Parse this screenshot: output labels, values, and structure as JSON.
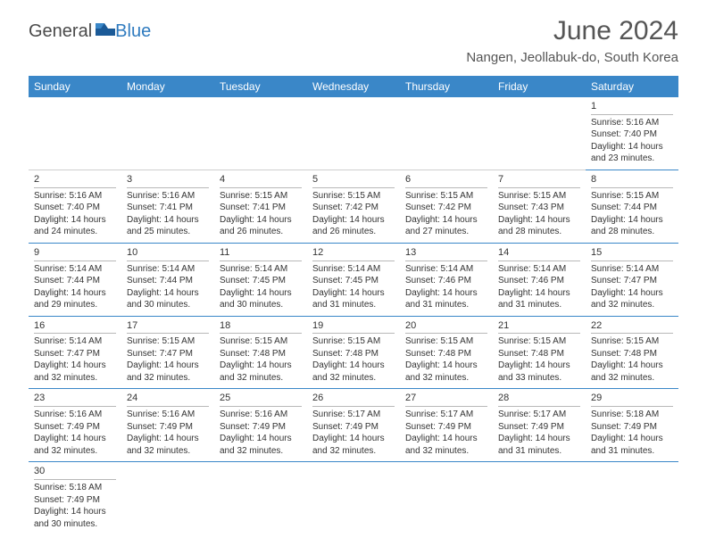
{
  "brand": {
    "part1": "General",
    "part2": "Blue"
  },
  "title": "June 2024",
  "location": "Nangen, Jeollabuk-do, South Korea",
  "colors": {
    "header_bg": "#3a87c8",
    "header_text": "#ffffff",
    "cell_border": "#3a87c8",
    "daynum_border": "#b8b8b8",
    "text": "#333333",
    "title_text": "#555555",
    "brand_gray": "#4a4a4a",
    "brand_blue": "#2f7bbf",
    "bg": "#ffffff"
  },
  "fonts": {
    "title_pt": 30,
    "location_pt": 15,
    "dayhead_pt": 12,
    "daynum_pt": 11,
    "info_pt": 10
  },
  "day_labels": [
    "Sunday",
    "Monday",
    "Tuesday",
    "Wednesday",
    "Thursday",
    "Friday",
    "Saturday"
  ],
  "weeks": [
    [
      null,
      null,
      null,
      null,
      null,
      null,
      {
        "n": "1",
        "sr": "Sunrise: 5:16 AM",
        "ss": "Sunset: 7:40 PM",
        "dl": "Daylight: 14 hours and 23 minutes."
      }
    ],
    [
      {
        "n": "2",
        "sr": "Sunrise: 5:16 AM",
        "ss": "Sunset: 7:40 PM",
        "dl": "Daylight: 14 hours and 24 minutes."
      },
      {
        "n": "3",
        "sr": "Sunrise: 5:16 AM",
        "ss": "Sunset: 7:41 PM",
        "dl": "Daylight: 14 hours and 25 minutes."
      },
      {
        "n": "4",
        "sr": "Sunrise: 5:15 AM",
        "ss": "Sunset: 7:41 PM",
        "dl": "Daylight: 14 hours and 26 minutes."
      },
      {
        "n": "5",
        "sr": "Sunrise: 5:15 AM",
        "ss": "Sunset: 7:42 PM",
        "dl": "Daylight: 14 hours and 26 minutes."
      },
      {
        "n": "6",
        "sr": "Sunrise: 5:15 AM",
        "ss": "Sunset: 7:42 PM",
        "dl": "Daylight: 14 hours and 27 minutes."
      },
      {
        "n": "7",
        "sr": "Sunrise: 5:15 AM",
        "ss": "Sunset: 7:43 PM",
        "dl": "Daylight: 14 hours and 28 minutes."
      },
      {
        "n": "8",
        "sr": "Sunrise: 5:15 AM",
        "ss": "Sunset: 7:44 PM",
        "dl": "Daylight: 14 hours and 28 minutes."
      }
    ],
    [
      {
        "n": "9",
        "sr": "Sunrise: 5:14 AM",
        "ss": "Sunset: 7:44 PM",
        "dl": "Daylight: 14 hours and 29 minutes."
      },
      {
        "n": "10",
        "sr": "Sunrise: 5:14 AM",
        "ss": "Sunset: 7:44 PM",
        "dl": "Daylight: 14 hours and 30 minutes."
      },
      {
        "n": "11",
        "sr": "Sunrise: 5:14 AM",
        "ss": "Sunset: 7:45 PM",
        "dl": "Daylight: 14 hours and 30 minutes."
      },
      {
        "n": "12",
        "sr": "Sunrise: 5:14 AM",
        "ss": "Sunset: 7:45 PM",
        "dl": "Daylight: 14 hours and 31 minutes."
      },
      {
        "n": "13",
        "sr": "Sunrise: 5:14 AM",
        "ss": "Sunset: 7:46 PM",
        "dl": "Daylight: 14 hours and 31 minutes."
      },
      {
        "n": "14",
        "sr": "Sunrise: 5:14 AM",
        "ss": "Sunset: 7:46 PM",
        "dl": "Daylight: 14 hours and 31 minutes."
      },
      {
        "n": "15",
        "sr": "Sunrise: 5:14 AM",
        "ss": "Sunset: 7:47 PM",
        "dl": "Daylight: 14 hours and 32 minutes."
      }
    ],
    [
      {
        "n": "16",
        "sr": "Sunrise: 5:14 AM",
        "ss": "Sunset: 7:47 PM",
        "dl": "Daylight: 14 hours and 32 minutes."
      },
      {
        "n": "17",
        "sr": "Sunrise: 5:15 AM",
        "ss": "Sunset: 7:47 PM",
        "dl": "Daylight: 14 hours and 32 minutes."
      },
      {
        "n": "18",
        "sr": "Sunrise: 5:15 AM",
        "ss": "Sunset: 7:48 PM",
        "dl": "Daylight: 14 hours and 32 minutes."
      },
      {
        "n": "19",
        "sr": "Sunrise: 5:15 AM",
        "ss": "Sunset: 7:48 PM",
        "dl": "Daylight: 14 hours and 32 minutes."
      },
      {
        "n": "20",
        "sr": "Sunrise: 5:15 AM",
        "ss": "Sunset: 7:48 PM",
        "dl": "Daylight: 14 hours and 32 minutes."
      },
      {
        "n": "21",
        "sr": "Sunrise: 5:15 AM",
        "ss": "Sunset: 7:48 PM",
        "dl": "Daylight: 14 hours and 33 minutes."
      },
      {
        "n": "22",
        "sr": "Sunrise: 5:15 AM",
        "ss": "Sunset: 7:48 PM",
        "dl": "Daylight: 14 hours and 32 minutes."
      }
    ],
    [
      {
        "n": "23",
        "sr": "Sunrise: 5:16 AM",
        "ss": "Sunset: 7:49 PM",
        "dl": "Daylight: 14 hours and 32 minutes."
      },
      {
        "n": "24",
        "sr": "Sunrise: 5:16 AM",
        "ss": "Sunset: 7:49 PM",
        "dl": "Daylight: 14 hours and 32 minutes."
      },
      {
        "n": "25",
        "sr": "Sunrise: 5:16 AM",
        "ss": "Sunset: 7:49 PM",
        "dl": "Daylight: 14 hours and 32 minutes."
      },
      {
        "n": "26",
        "sr": "Sunrise: 5:17 AM",
        "ss": "Sunset: 7:49 PM",
        "dl": "Daylight: 14 hours and 32 minutes."
      },
      {
        "n": "27",
        "sr": "Sunrise: 5:17 AM",
        "ss": "Sunset: 7:49 PM",
        "dl": "Daylight: 14 hours and 32 minutes."
      },
      {
        "n": "28",
        "sr": "Sunrise: 5:17 AM",
        "ss": "Sunset: 7:49 PM",
        "dl": "Daylight: 14 hours and 31 minutes."
      },
      {
        "n": "29",
        "sr": "Sunrise: 5:18 AM",
        "ss": "Sunset: 7:49 PM",
        "dl": "Daylight: 14 hours and 31 minutes."
      }
    ],
    [
      {
        "n": "30",
        "sr": "Sunrise: 5:18 AM",
        "ss": "Sunset: 7:49 PM",
        "dl": "Daylight: 14 hours and 30 minutes."
      },
      null,
      null,
      null,
      null,
      null,
      null
    ]
  ]
}
